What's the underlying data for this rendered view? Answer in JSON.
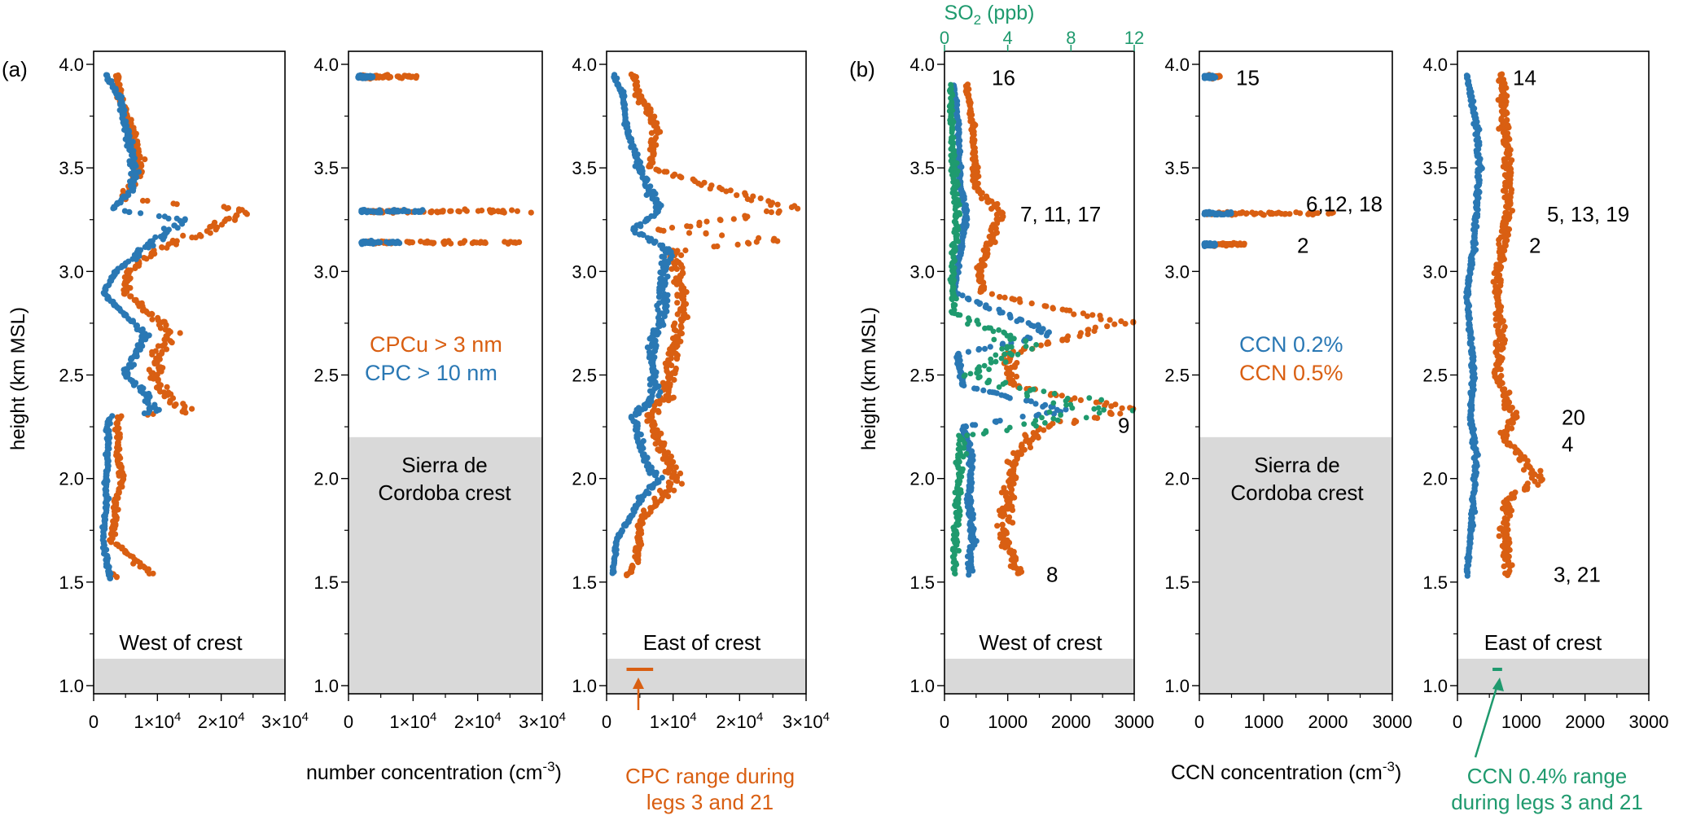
{
  "colors": {
    "cpcu": "#d95f12",
    "cpc": "#2a78b4",
    "ccn02": "#2a78b4",
    "ccn05": "#d95f12",
    "so2": "#1f9a6e",
    "terrain": "#d9d9d9"
  },
  "figure": {
    "ylabel": "height (km MSL)",
    "group_a_tag": "(a)",
    "group_b_tag": "(b)",
    "xlabel_a": "number concentration (cm",
    "xlabel_b": "CCN concentration (cm",
    "xlabel_exp": "-3",
    "xlabel_close": ")",
    "so2_axis_label": "SO",
    "so2_sub": "2",
    "so2_unit": " (ppb)",
    "so2_ticks": [
      "0",
      "4",
      "8",
      "12"
    ],
    "y_ticks": [
      "1.0",
      "1.5",
      "2.0",
      "2.5",
      "3.0",
      "3.5",
      "4.0"
    ],
    "x_ticks_a": [
      "0",
      "1×10",
      "2×10",
      "3×10"
    ],
    "x_ticks_a_exp": "4",
    "x_ticks_b": [
      "0",
      "1000",
      "2000",
      "3000"
    ],
    "west_label": "West of crest",
    "east_label": "East of crest",
    "crest_label_line1": "Sierra de",
    "crest_label_line2": "Cordoba crest",
    "legend_a": [
      "CPCu > 3 nm",
      "CPC > 10 nm"
    ],
    "legend_b": [
      "CCN 0.2%",
      "CCN 0.5%"
    ],
    "annotation_a_line1": "CPC range during",
    "annotation_a_line2": "legs 3 and 21",
    "annotation_b_line1": "CCN 0.4% range",
    "annotation_b_line2": "during legs 3 and 21",
    "leg_labels_west_b": [
      "16",
      "7, 11, 17",
      "9",
      "8"
    ],
    "leg_labels_crest_b": [
      "15",
      "6,12, 18",
      "2"
    ],
    "leg_labels_east_b": [
      "14",
      "5, 13, 19",
      "2",
      "20",
      "4",
      "3, 21"
    ]
  },
  "chart_data": [
    {
      "type": "scatter",
      "panel": "(a) West of crest",
      "xlabel": "number concentration (cm-3)",
      "ylabel": "height (km MSL)",
      "xlim": [
        0,
        30000
      ],
      "ylim": [
        1.0,
        4.0
      ],
      "terrain_top_km": 1.13,
      "series": [
        {
          "name": "CPCu > 3 nm",
          "color": "cpcu",
          "profile": [
            [
              1.52,
              3500
            ],
            [
              1.54,
              3200
            ],
            [
              1.54,
              9000
            ],
            [
              1.7,
              2900
            ],
            [
              1.9,
              3600
            ],
            [
              2.0,
              4500
            ],
            [
              2.1,
              3800
            ],
            [
              2.3,
              3700
            ],
            [
              2.32,
              15000
            ],
            [
              2.4,
              11500
            ],
            [
              2.5,
              9500
            ],
            [
              2.6,
              10000
            ],
            [
              2.7,
              12000
            ],
            [
              2.8,
              8500
            ],
            [
              2.9,
              5000
            ],
            [
              3.0,
              5500
            ],
            [
              3.1,
              9500
            ],
            [
              3.2,
              18500
            ],
            [
              3.25,
              21000
            ],
            [
              3.3,
              24000
            ],
            [
              3.35,
              4500
            ],
            [
              3.5,
              7500
            ],
            [
              3.7,
              6000
            ],
            [
              3.85,
              3900
            ],
            [
              3.95,
              3800
            ]
          ]
        },
        {
          "name": "CPC > 10 nm",
          "color": "cpc",
          "profile": [
            [
              1.52,
              2500
            ],
            [
              1.7,
              1500
            ],
            [
              1.9,
              2000
            ],
            [
              2.0,
              2000
            ],
            [
              2.1,
              2200
            ],
            [
              2.3,
              2300
            ],
            [
              2.32,
              9500
            ],
            [
              2.4,
              8500
            ],
            [
              2.5,
              5000
            ],
            [
              2.6,
              6500
            ],
            [
              2.7,
              8000
            ],
            [
              2.8,
              4500
            ],
            [
              2.9,
              1500
            ],
            [
              3.0,
              3500
            ],
            [
              3.1,
              7500
            ],
            [
              3.2,
              12000
            ],
            [
              3.25,
              14000
            ],
            [
              3.3,
              3000
            ],
            [
              3.4,
              6000
            ],
            [
              3.5,
              6500
            ],
            [
              3.7,
              5000
            ],
            [
              3.85,
              4000
            ],
            [
              3.95,
              2000
            ]
          ]
        }
      ]
    },
    {
      "type": "scatter",
      "panel": "(a) Sierra de Cordoba crest",
      "xlim": [
        0,
        30000
      ],
      "ylim": [
        1.0,
        4.0
      ],
      "terrain_top_km": 2.2,
      "series": [
        {
          "name": "CPCu > 3 nm",
          "color": "cpcu",
          "bands": [
            [
              3.94,
              2000,
              11000
            ],
            [
              3.29,
              3000,
              30000
            ],
            [
              3.14,
              3000,
              27000
            ]
          ]
        },
        {
          "name": "CPC > 10 nm",
          "color": "cpc",
          "bands": [
            [
              3.94,
              1500,
              4000
            ],
            [
              3.29,
              2000,
              12000
            ],
            [
              3.14,
              2000,
              8000
            ]
          ]
        }
      ]
    },
    {
      "type": "scatter",
      "panel": "(a) East of crest",
      "xlim": [
        0,
        30000
      ],
      "ylim": [
        1.0,
        4.0
      ],
      "terrain_top_km": 1.13,
      "series": [
        {
          "name": "CPCu > 3 nm",
          "color": "cpcu",
          "profile": [
            [
              1.53,
              3000
            ],
            [
              1.6,
              4500
            ],
            [
              1.8,
              5000
            ],
            [
              1.9,
              8000
            ],
            [
              2.0,
              10500
            ],
            [
              2.1,
              9000
            ],
            [
              2.3,
              6500
            ],
            [
              2.4,
              9000
            ],
            [
              2.6,
              10000
            ],
            [
              2.8,
              11500
            ],
            [
              3.0,
              11000
            ],
            [
              3.1,
              10500
            ],
            [
              3.15,
              26000
            ],
            [
              3.2,
              8000
            ],
            [
              3.3,
              28000
            ],
            [
              3.5,
              6500
            ],
            [
              3.7,
              7500
            ],
            [
              3.85,
              5000
            ],
            [
              3.95,
              4000
            ]
          ]
        },
        {
          "name": "CPC > 10 nm",
          "color": "cpc",
          "profile": [
            [
              1.55,
              1000
            ],
            [
              1.7,
              1500
            ],
            [
              1.9,
              5000
            ],
            [
              2.0,
              8000
            ],
            [
              2.1,
              5500
            ],
            [
              2.3,
              4000
            ],
            [
              2.4,
              7500
            ],
            [
              2.6,
              6500
            ],
            [
              2.8,
              8500
            ],
            [
              3.0,
              8500
            ],
            [
              3.1,
              9500
            ],
            [
              3.2,
              4000
            ],
            [
              3.3,
              8000
            ],
            [
              3.5,
              5000
            ],
            [
              3.7,
              3000
            ],
            [
              3.85,
              2500
            ],
            [
              3.95,
              1000
            ]
          ]
        }
      ],
      "cpc_range_legs_3_21": [
        3000,
        7000
      ]
    },
    {
      "type": "scatter",
      "panel": "(b) West of crest",
      "xlabel": "CCN concentration (cm-3)",
      "ylabel": "height (km MSL)",
      "xlim": [
        0,
        3000
      ],
      "ylim": [
        1.0,
        4.0
      ],
      "secondary_x": {
        "label": "SO2 (ppb)",
        "lim": [
          0,
          12
        ]
      },
      "terrain_top_km": 1.13,
      "series": [
        {
          "name": "CCN 0.5%",
          "color": "ccn05",
          "profile": [
            [
              1.54,
              1200
            ],
            [
              1.7,
              950
            ],
            [
              1.9,
              1000
            ],
            [
              2.1,
              1100
            ],
            [
              2.25,
              1500
            ],
            [
              2.33,
              3000
            ],
            [
              2.45,
              1100
            ],
            [
              2.6,
              1000
            ],
            [
              2.75,
              2800
            ],
            [
              2.9,
              600
            ],
            [
              3.0,
              550
            ],
            [
              3.28,
              900
            ],
            [
              3.4,
              500
            ],
            [
              3.7,
              450
            ],
            [
              3.9,
              350
            ]
          ]
        },
        {
          "name": "CCN 0.2%",
          "color": "ccn02",
          "profile": [
            [
              1.54,
              400
            ],
            [
              1.7,
              450
            ],
            [
              1.9,
              400
            ],
            [
              2.1,
              420
            ],
            [
              2.25,
              300
            ],
            [
              2.33,
              1900
            ],
            [
              2.45,
              300
            ],
            [
              2.6,
              200
            ],
            [
              2.7,
              1700
            ],
            [
              2.9,
              150
            ],
            [
              3.0,
              200
            ],
            [
              3.28,
              350
            ],
            [
              3.4,
              250
            ],
            [
              3.7,
              220
            ],
            [
              3.9,
              150
            ]
          ]
        },
        {
          "name": "SO2",
          "color": "so2",
          "profile_so2": [
            [
              1.54,
              0.6
            ],
            [
              1.8,
              0.8
            ],
            [
              2.0,
              0.9
            ],
            [
              2.2,
              1.1
            ],
            [
              2.33,
              10.0
            ],
            [
              2.5,
              1.5
            ],
            [
              2.65,
              5.0
            ],
            [
              2.8,
              0.6
            ],
            [
              3.0,
              0.5
            ],
            [
              3.28,
              0.8
            ],
            [
              3.6,
              0.5
            ],
            [
              3.9,
              0.4
            ]
          ]
        }
      ],
      "leg_labels": [
        [
          "16",
          3.94
        ],
        [
          "7, 11, 17",
          3.28
        ],
        [
          "9",
          2.26
        ],
        [
          "8",
          1.54
        ]
      ]
    },
    {
      "type": "scatter",
      "panel": "(b) Sierra de Cordoba crest",
      "xlim": [
        0,
        3000
      ],
      "ylim": [
        1.0,
        4.0
      ],
      "terrain_top_km": 2.2,
      "series": [
        {
          "name": "CCN 0.5%",
          "color": "ccn05",
          "bands": [
            [
              3.94,
              100,
              350
            ],
            [
              3.28,
              100,
              2100
            ],
            [
              3.13,
              100,
              700
            ]
          ]
        },
        {
          "name": "CCN 0.2%",
          "color": "ccn02",
          "bands": [
            [
              3.94,
              80,
              250
            ],
            [
              3.28,
              80,
              500
            ],
            [
              3.13,
              80,
              250
            ]
          ]
        }
      ],
      "leg_labels": [
        [
          "15",
          3.94
        ],
        [
          "6,12, 18",
          3.33
        ],
        [
          "2",
          3.13
        ]
      ]
    },
    {
      "type": "scatter",
      "panel": "(b) East of crest",
      "xlim": [
        0,
        3000
      ],
      "ylim": [
        1.0,
        4.0
      ],
      "terrain_top_km": 1.13,
      "series": [
        {
          "name": "CCN 0.5%",
          "color": "ccn05",
          "profile": [
            [
              1.54,
              800
            ],
            [
              1.7,
              750
            ],
            [
              1.9,
              800
            ],
            [
              2.0,
              1300
            ],
            [
              2.1,
              1000
            ],
            [
              2.2,
              700
            ],
            [
              2.3,
              900
            ],
            [
              2.5,
              600
            ],
            [
              2.7,
              700
            ],
            [
              2.9,
              600
            ],
            [
              3.1,
              700
            ],
            [
              3.3,
              800
            ],
            [
              3.5,
              800
            ],
            [
              3.7,
              750
            ],
            [
              3.95,
              700
            ]
          ]
        },
        {
          "name": "CCN 0.2%",
          "color": "ccn02",
          "profile": [
            [
              1.54,
              150
            ],
            [
              1.7,
              200
            ],
            [
              1.9,
              250
            ],
            [
              2.1,
              300
            ],
            [
              2.3,
              200
            ],
            [
              2.5,
              250
            ],
            [
              2.7,
              200
            ],
            [
              2.9,
              150
            ],
            [
              3.1,
              250
            ],
            [
              3.3,
              300
            ],
            [
              3.5,
              350
            ],
            [
              3.7,
              300
            ],
            [
              3.95,
              150
            ]
          ]
        }
      ],
      "leg_labels": [
        [
          "14",
          3.94
        ],
        [
          "5, 13, 19",
          3.28
        ],
        [
          "2",
          3.13
        ],
        [
          "20",
          2.3
        ],
        [
          "4",
          2.17
        ],
        [
          "3, 21",
          1.54
        ]
      ],
      "ccn04_range_legs_3_21": [
        550,
        700
      ]
    }
  ]
}
